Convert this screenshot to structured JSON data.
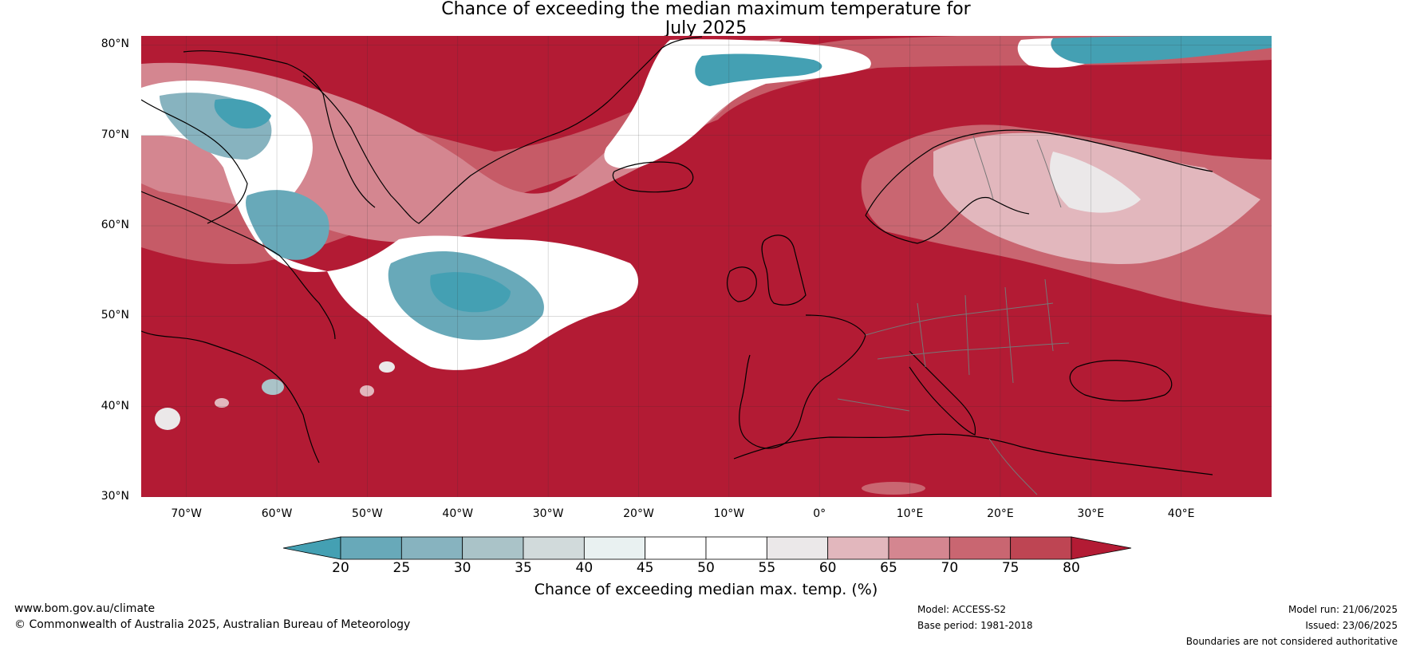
{
  "title": {
    "line1": "Chance of exceeding the median maximum temperature for",
    "line2": "July 2025"
  },
  "map": {
    "lon_range": [
      -75,
      50
    ],
    "lat_range": [
      30,
      81
    ],
    "lat_ticks": [
      {
        "value": 80,
        "label": "80°N"
      },
      {
        "value": 70,
        "label": "70°N"
      },
      {
        "value": 60,
        "label": "60°N"
      },
      {
        "value": 50,
        "label": "50°N"
      },
      {
        "value": 40,
        "label": "40°N"
      },
      {
        "value": 30,
        "label": "30°N"
      }
    ],
    "lon_ticks": [
      {
        "value": -70,
        "label": "70°W"
      },
      {
        "value": -60,
        "label": "60°W"
      },
      {
        "value": -50,
        "label": "50°W"
      },
      {
        "value": -40,
        "label": "40°W"
      },
      {
        "value": -30,
        "label": "30°W"
      },
      {
        "value": -20,
        "label": "20°W"
      },
      {
        "value": -10,
        "label": "10°W"
      },
      {
        "value": 0,
        "label": "0°"
      },
      {
        "value": 10,
        "label": "10°E"
      },
      {
        "value": 20,
        "label": "20°E"
      },
      {
        "value": 30,
        "label": "30°E"
      },
      {
        "value": 40,
        "label": "40°E"
      }
    ],
    "background_color": "#b31b34"
  },
  "colorbar": {
    "ticks": [
      {
        "value": 20,
        "label": "20"
      },
      {
        "value": 25,
        "label": "25"
      },
      {
        "value": 30,
        "label": "30"
      },
      {
        "value": 35,
        "label": "35"
      },
      {
        "value": 40,
        "label": "40"
      },
      {
        "value": 45,
        "label": "45"
      },
      {
        "value": 50,
        "label": "50"
      },
      {
        "value": 55,
        "label": "55"
      },
      {
        "value": 60,
        "label": "60"
      },
      {
        "value": 65,
        "label": "65"
      },
      {
        "value": 70,
        "label": "70"
      },
      {
        "value": 75,
        "label": "75"
      },
      {
        "value": 80,
        "label": "80"
      }
    ],
    "colors": {
      "below_20": "#44a0b3",
      "20_25": "#68a9b9",
      "25_30": "#87b3bf",
      "30_35": "#aac3c8",
      "35_40": "#d1dadb",
      "40_45": "#e9f1f1",
      "45_50": "#ffffff",
      "50_55": "#ffffff",
      "55_60": "#ebe8e9",
      "60_65": "#e2b7bd",
      "65_70": "#d48690",
      "70_75": "#c96671",
      "75_80": "#be4553",
      "above_80": "#b31b34"
    },
    "label": "Chance of exceeding median max. temp. (%)"
  },
  "footer": {
    "website": "www.bom.gov.au/climate",
    "copyright": "© Commonwealth of Australia 2025, Australian Bureau of Meteorology",
    "model": "Model: ACCESS-S2",
    "base_period": "Base period: 1981-2018",
    "model_run": "Model run: 21/06/2025",
    "issued": "Issued: 23/06/2025",
    "disclaimer": "Boundaries are not considered authoritative"
  }
}
